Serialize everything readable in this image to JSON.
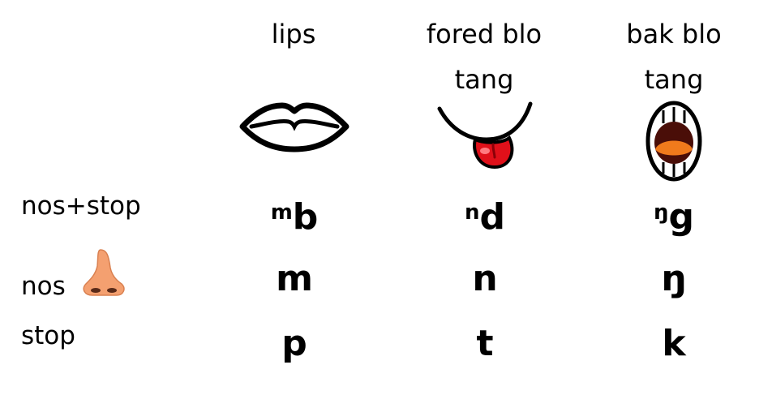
{
  "columns": [
    {
      "line1": "lips",
      "line2": ""
    },
    {
      "line1": "fored blo",
      "line2": "tang"
    },
    {
      "line1": "bak blo",
      "line2": "tang"
    }
  ],
  "rows": [
    {
      "label": "nos+stop",
      "cells": [
        {
          "sup": "m",
          "base": "b"
        },
        {
          "sup": "n",
          "base": "d"
        },
        {
          "sup": "ŋ",
          "base": "g"
        }
      ]
    },
    {
      "label": "nos",
      "cells": [
        {
          "sup": "",
          "base": "m"
        },
        {
          "sup": "",
          "base": "n"
        },
        {
          "sup": "",
          "base": "ŋ"
        }
      ]
    },
    {
      "label": "stop",
      "cells": [
        {
          "sup": "",
          "base": "p"
        },
        {
          "sup": "",
          "base": "t"
        },
        {
          "sup": "",
          "base": "k"
        }
      ]
    }
  ],
  "icons": {
    "lips": "lips-icon",
    "front_tongue": "tongue-out-mouth-icon",
    "back_tongue": "open-mouth-icon",
    "nose": "nose-icon"
  }
}
